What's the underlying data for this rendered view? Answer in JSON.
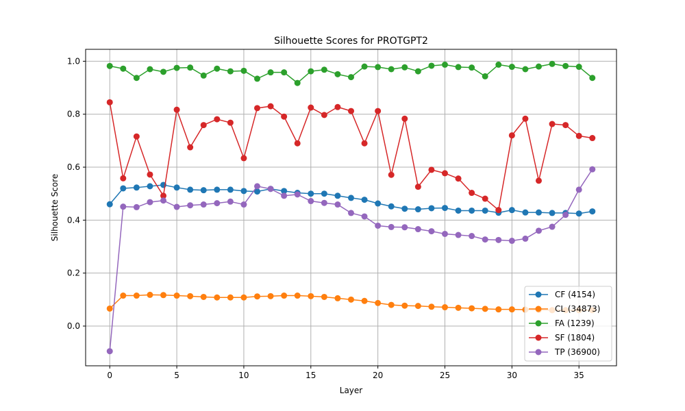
{
  "chart_data": {
    "type": "line",
    "title": "Silhouette Scores for PROTGPT2",
    "xlabel": "Layer",
    "ylabel": "Silhouette Score",
    "xlim": [
      -1.8,
      37.8
    ],
    "ylim": [
      -0.15,
      1.045
    ],
    "xticks": [
      0,
      5,
      10,
      15,
      20,
      25,
      30,
      35
    ],
    "yticks": [
      0.0,
      0.2,
      0.4,
      0.6,
      0.8,
      1.0
    ],
    "ytick_labels": [
      "0.0",
      "0.2",
      "0.4",
      "0.6",
      "0.8",
      "1.0"
    ],
    "grid": true,
    "legend_position": "lower-right",
    "x": [
      0,
      1,
      2,
      3,
      4,
      5,
      6,
      7,
      8,
      9,
      10,
      11,
      12,
      13,
      14,
      15,
      16,
      17,
      18,
      19,
      20,
      21,
      22,
      23,
      24,
      25,
      26,
      27,
      28,
      29,
      30,
      31,
      32,
      33,
      34,
      35,
      36
    ],
    "series": [
      {
        "name": "CF (4154)",
        "color": "#1f77b4",
        "values": [
          0.46,
          0.52,
          0.523,
          0.528,
          0.533,
          0.523,
          0.515,
          0.513,
          0.515,
          0.515,
          0.51,
          0.508,
          0.518,
          0.51,
          0.503,
          0.5,
          0.5,
          0.492,
          0.484,
          0.477,
          0.463,
          0.452,
          0.443,
          0.441,
          0.445,
          0.446,
          0.436,
          0.436,
          0.436,
          0.428,
          0.438,
          0.429,
          0.429,
          0.427,
          0.427,
          0.425,
          0.433
        ]
      },
      {
        "name": "CL (34873)",
        "color": "#ff7f0e",
        "values": [
          0.066,
          0.115,
          0.115,
          0.118,
          0.117,
          0.115,
          0.113,
          0.11,
          0.108,
          0.108,
          0.108,
          0.112,
          0.113,
          0.115,
          0.115,
          0.113,
          0.11,
          0.105,
          0.1,
          0.095,
          0.087,
          0.08,
          0.077,
          0.076,
          0.073,
          0.071,
          0.069,
          0.067,
          0.065,
          0.063,
          0.063,
          0.062,
          0.061,
          0.06,
          0.06,
          0.06,
          0.06
        ]
      },
      {
        "name": "FA (1239)",
        "color": "#2ca02c",
        "values": [
          0.982,
          0.972,
          0.937,
          0.97,
          0.96,
          0.975,
          0.976,
          0.946,
          0.972,
          0.962,
          0.964,
          0.934,
          0.958,
          0.958,
          0.918,
          0.962,
          0.968,
          0.951,
          0.94,
          0.98,
          0.978,
          0.97,
          0.977,
          0.962,
          0.983,
          0.987,
          0.978,
          0.976,
          0.943,
          0.987,
          0.979,
          0.97,
          0.98,
          0.99,
          0.982,
          0.979,
          0.937
        ]
      },
      {
        "name": "SF (1804)",
        "color": "#d62728",
        "values": [
          0.845,
          0.558,
          0.716,
          0.572,
          0.492,
          0.817,
          0.675,
          0.759,
          0.781,
          0.768,
          0.634,
          0.823,
          0.83,
          0.791,
          0.69,
          0.825,
          0.797,
          0.827,
          0.812,
          0.69,
          0.812,
          0.571,
          0.783,
          0.526,
          0.59,
          0.577,
          0.557,
          0.503,
          0.481,
          0.438,
          0.72,
          0.783,
          0.549,
          0.763,
          0.759,
          0.718,
          0.71
        ]
      },
      {
        "name": "TP (36900)",
        "color": "#9467bd",
        "values": [
          -0.095,
          0.451,
          0.449,
          0.468,
          0.474,
          0.45,
          0.456,
          0.459,
          0.464,
          0.47,
          0.459,
          0.528,
          0.518,
          0.492,
          0.497,
          0.472,
          0.465,
          0.459,
          0.427,
          0.414,
          0.379,
          0.374,
          0.373,
          0.366,
          0.358,
          0.348,
          0.344,
          0.34,
          0.327,
          0.325,
          0.322,
          0.33,
          0.36,
          0.375,
          0.42,
          0.515,
          0.592
        ]
      }
    ]
  }
}
